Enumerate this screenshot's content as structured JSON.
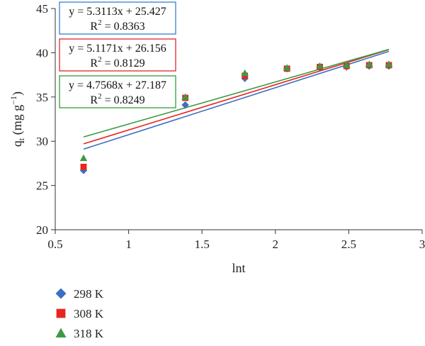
{
  "chart_data": {
    "type": "scatter",
    "xlabel": "lnt",
    "ylabel_main": "q",
    "ylabel_sub": "t",
    "ylabel_unit": " (mg g",
    "ylabel_exp": "−1",
    "ylabel_close": ")",
    "xlim": [
      0.5,
      3
    ],
    "ylim": [
      20,
      45
    ],
    "xticks": [
      "0.5",
      "1",
      "1.5",
      "2",
      "2.5",
      "3"
    ],
    "yticks": [
      "20",
      "25",
      "30",
      "35",
      "40",
      "45"
    ],
    "x": [
      0.693,
      1.386,
      1.792,
      2.079,
      2.303,
      2.485,
      2.639,
      2.773
    ],
    "series": [
      {
        "name": "298 K",
        "marker": "diamond",
        "color": "#3a6fc4",
        "values": [
          26.7,
          34.1,
          37.1,
          38.2,
          38.3,
          38.4,
          38.5,
          38.5
        ],
        "fit": {
          "slope": 5.3113,
          "intercept": 25.427,
          "equation": "y = 5.3113x + 25.427",
          "r2_label": "R",
          "r2_exp": "2",
          "r2_value": " = 0.8363",
          "box_color": "#3a7fd0"
        }
      },
      {
        "name": "308 K",
        "marker": "square",
        "color": "#e8261c",
        "values": [
          27.1,
          34.9,
          37.4,
          38.2,
          38.4,
          38.5,
          38.6,
          38.6
        ],
        "fit": {
          "slope": 5.1171,
          "intercept": 26.156,
          "equation": "y = 5.1171x + 26.156",
          "r2_label": "R",
          "r2_exp": "2",
          "r2_value": " = 0.8129",
          "box_color": "#e0262b"
        }
      },
      {
        "name": "318 K",
        "marker": "triangle",
        "color": "#3c9a45",
        "values": [
          28.1,
          35.0,
          37.7,
          38.3,
          38.5,
          38.6,
          38.7,
          38.7
        ],
        "fit": {
          "slope": 4.7568,
          "intercept": 27.187,
          "equation": "y = 4.7568x + 27.187",
          "r2_label": "R",
          "r2_exp": "2",
          "r2_value": " = 0.8249",
          "box_color": "#2f9d3a"
        }
      }
    ],
    "fit_x_range": [
      0.693,
      2.773
    ],
    "grid": false,
    "legend": "bottom-left"
  }
}
